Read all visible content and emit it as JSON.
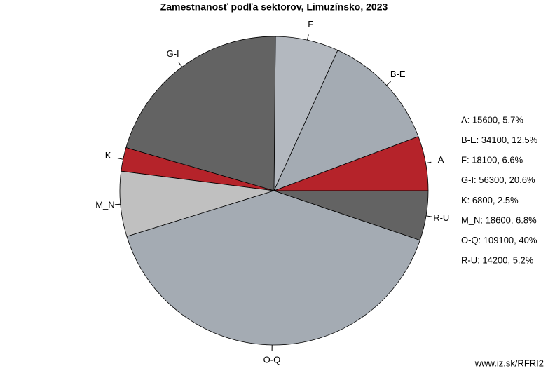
{
  "chart_data": {
    "type": "pie",
    "title": "Zamestnanosť podľa sektorov, Limuzínsko, 2023",
    "categories": [
      "A",
      "B-E",
      "F",
      "G-I",
      "K",
      "M_N",
      "O-Q",
      "R-U"
    ],
    "values": [
      15600,
      34100,
      18100,
      56300,
      6800,
      18600,
      109100,
      14200
    ],
    "value_labels": [
      "A: 15600, 5.7%",
      "B-E: 34100, 12.5%",
      "F: 18100, 6.6%",
      "G-I: 56300, 20.6%",
      "K: 6800, 2.5%",
      "M_N: 18600, 6.8%",
      "O-Q: 109100, 40%",
      "R-U: 14200, 5.2%"
    ],
    "colors": [
      "#b5232a",
      "#a4abb3",
      "#b3b8bf",
      "#636363",
      "#b5232a",
      "#c0c0c0",
      "#a4abb3",
      "#636363"
    ],
    "source": "www.iz.sk/RFRI2"
  }
}
